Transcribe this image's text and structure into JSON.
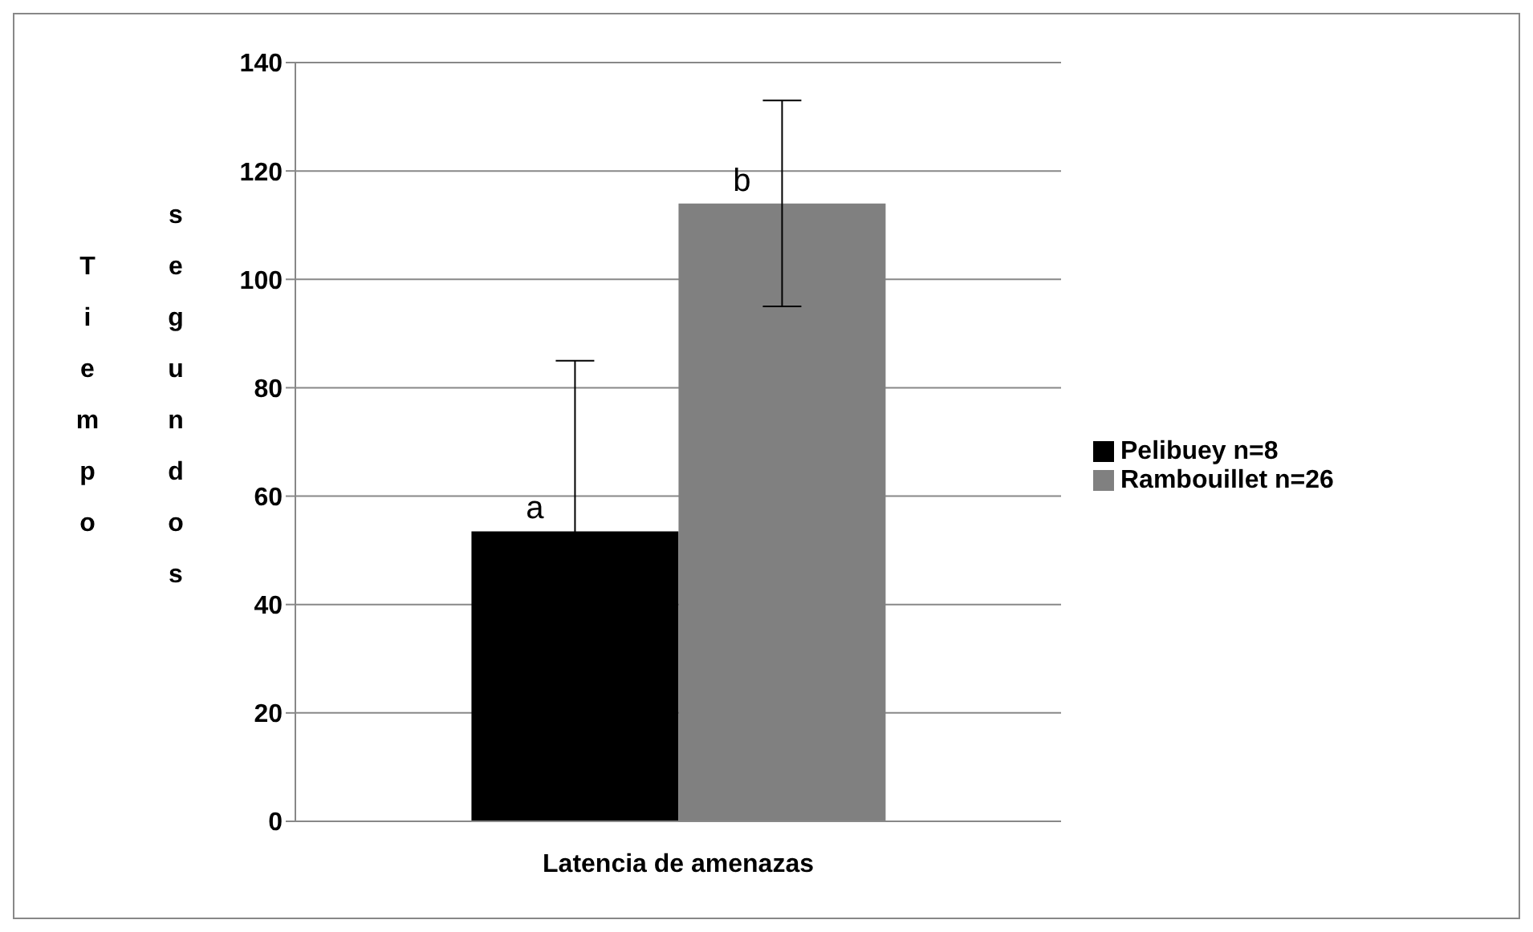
{
  "chart_data": {
    "type": "bar",
    "ylabel": "Tiempo segundos",
    "categories": [
      "Latencia de amenazas"
    ],
    "series": [
      {
        "name": "Pelibuey n=8",
        "color": "#000000",
        "values": [
          53.5
        ],
        "errors": [
          31.5
        ]
      },
      {
        "name": "Rambouillet n=26",
        "color": "#808080",
        "values": [
          114
        ],
        "errors": [
          19
        ]
      }
    ],
    "annotations": [
      "a",
      "b"
    ],
    "ylim": [
      0,
      140
    ],
    "yticks": [
      0,
      20,
      40,
      60,
      80,
      100,
      120,
      140
    ],
    "grid": "y",
    "legend": "right"
  }
}
